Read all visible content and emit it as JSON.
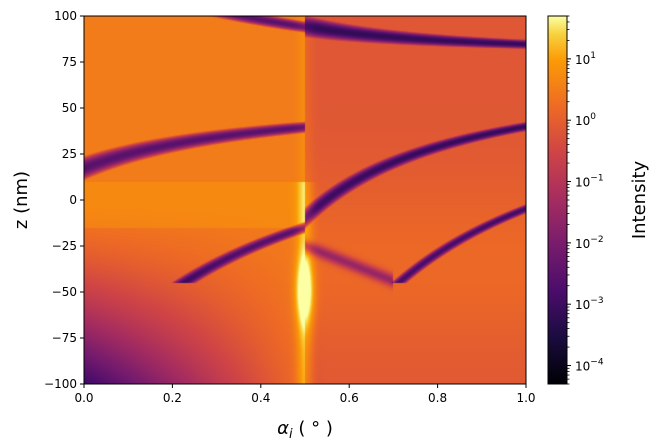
{
  "chart_data": {
    "type": "heatmap",
    "xlabel_main": "α",
    "xlabel_sub": "i",
    "xlabel_unit": " ( ° )",
    "ylabel": "z (nm)",
    "colorbar_label": "Intensity",
    "xlim": [
      0,
      1.0
    ],
    "ylim": [
      -100,
      100
    ],
    "x_ticks": [
      0.0,
      0.2,
      0.4,
      0.6,
      0.8,
      1.0
    ],
    "x_tick_labels": [
      "0.0",
      "0.2",
      "0.4",
      "0.6",
      "0.8",
      "1.0"
    ],
    "y_ticks": [
      100,
      75,
      50,
      25,
      0,
      -25,
      -50,
      -75,
      -100
    ],
    "y_tick_labels": [
      "100",
      "75",
      "50",
      "25",
      "0",
      "−25",
      "−50",
      "−75",
      "−100"
    ],
    "colorbar": {
      "scale": "log",
      "colormap": "inferno",
      "range": [
        5e-05,
        50
      ],
      "ticks": [
        {
          "value": 10,
          "base": "10",
          "exp": "1"
        },
        {
          "value": 1,
          "base": "10",
          "exp": "0"
        },
        {
          "value": 0.1,
          "base": "10",
          "exp": "−1"
        },
        {
          "value": 0.01,
          "base": "10",
          "exp": "−2"
        },
        {
          "value": 0.001,
          "base": "10",
          "exp": "−3"
        },
        {
          "value": 0.0001,
          "base": "10",
          "exp": "−4"
        }
      ]
    },
    "features": {
      "critical_angle_deg": 0.5,
      "peak_z_nm": -50,
      "peak_intensity": 50
    }
  }
}
